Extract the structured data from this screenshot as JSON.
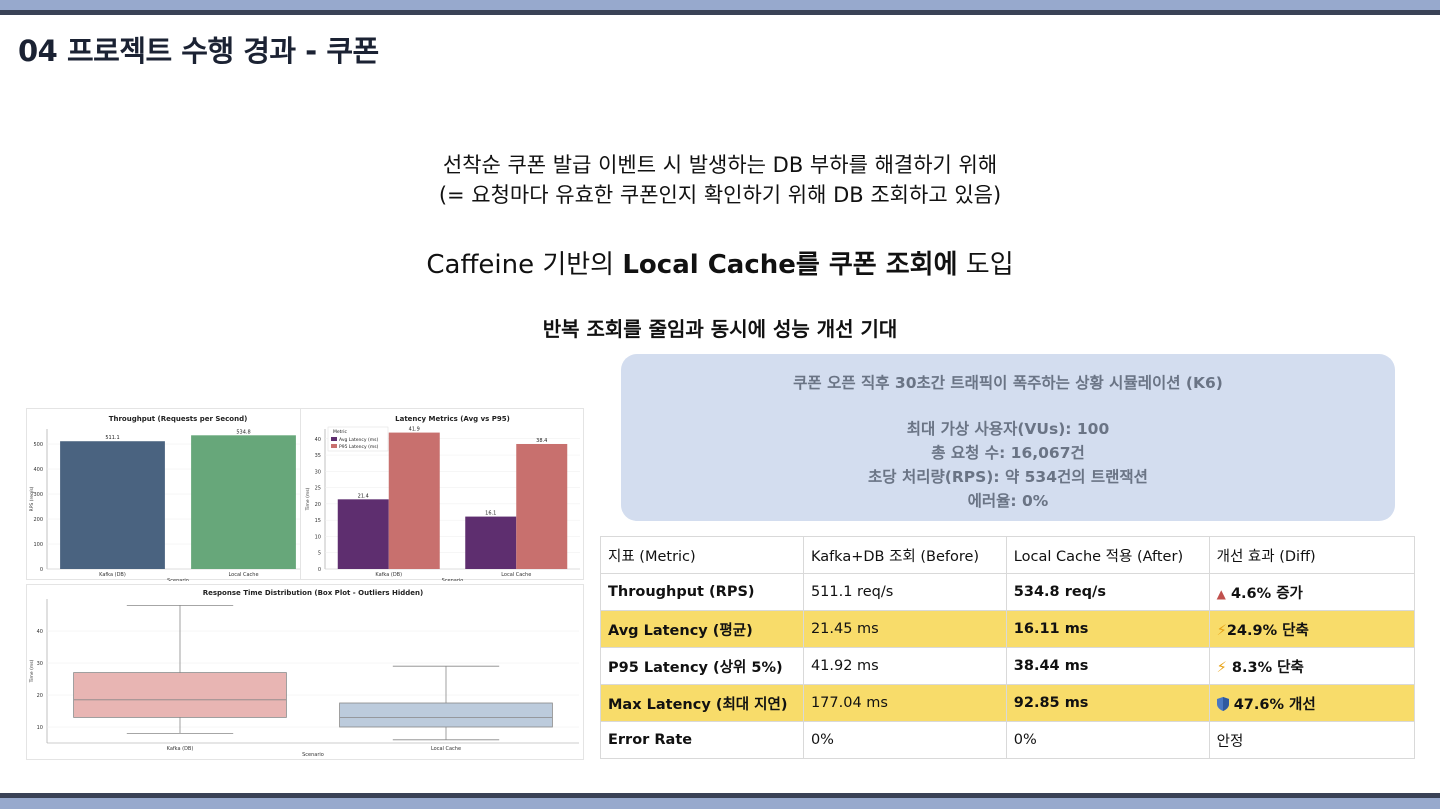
{
  "slide": {
    "title": "04 프로젝트 수행 경과 - 쿠폰",
    "intro_line1": "선착순 쿠폰 발급 이벤트 시 발생하는 DB 부하를 해결하기 위해",
    "intro_line2": "(= 요청마다 유효한 쿠폰인지 확인하기 위해 DB 조회하고 있음)",
    "headline_part1": "Caffeine 기반의 ",
    "headline_bold": "Local Cache를 쿠폰 조회에",
    "headline_part2": " 도입",
    "subhead": "반복 조회를 줄임과 동시에 성능 개선 기대",
    "colors": {
      "accent_band": "#97a9cd",
      "dark_line": "#3a4256",
      "sim_box": "#d3ddef",
      "highlight_row": "#f8dc6a"
    }
  },
  "simulation": {
    "title": "쿠폰 오픈 직후 30초간 트래픽이 폭주하는 상황 시뮬레이션 (K6)",
    "lines": [
      "최대 가상 사용자(VUs): 100",
      "총 요청 수: 16,067건",
      "초당 처리량(RPS): 약 534건의 트랜잭션",
      "에러율: 0%"
    ]
  },
  "table": {
    "headers": [
      "지표 (Metric)",
      "Kafka+DB 조회 (Before)",
      "Local Cache 적용 (After)",
      "개선 효과 (Diff)"
    ],
    "rows": [
      {
        "metric": "Throughput (RPS)",
        "before": "511.1 req/s",
        "after": "534.8 req/s",
        "diff_icon": "▲",
        "diff": "4.6% 증가",
        "highlight": false
      },
      {
        "metric": "Avg Latency (평균)",
        "before": "21.45 ms",
        "after": "16.11 ms",
        "diff_icon": "⚡",
        "diff": "24.9% 단축",
        "highlight": true
      },
      {
        "metric": "P95 Latency (상위 5%)",
        "before": "41.92 ms",
        "after": "38.44 ms",
        "diff_icon": "⚡",
        "diff": "8.3% 단축",
        "highlight": false
      },
      {
        "metric": "Max Latency (최대 지연)",
        "before": "177.04 ms",
        "after": "92.85 ms",
        "diff_icon": "shield-icon",
        "diff": "47.6% 개선",
        "highlight": true
      },
      {
        "metric": "Error Rate",
        "before": "0%",
        "after": "0%",
        "diff_icon": "",
        "diff": "안정",
        "highlight": false
      }
    ]
  },
  "chart_data": [
    {
      "type": "bar",
      "title": "Throughput (Requests per Second)",
      "xlabel": "Scenario",
      "ylabel": "RPS (req/s)",
      "categories": [
        "Kafka (DB)",
        "Local Cache"
      ],
      "values": [
        511.1,
        534.8
      ],
      "value_labels": [
        "511.1",
        "534.8"
      ],
      "colors": [
        "#4a6380",
        "#67a77a"
      ],
      "ylim": [
        0,
        560
      ],
      "yticks": [
        0,
        100,
        200,
        300,
        400,
        500
      ]
    },
    {
      "type": "bar",
      "title": "Latency Metrics (Avg vs P95)",
      "xlabel": "Scenario",
      "ylabel": "Time (ms)",
      "categories": [
        "Kafka (DB)",
        "Local Cache"
      ],
      "legend_title": "Metric",
      "series": [
        {
          "name": "Avg Latency (ms)",
          "values": [
            21.4,
            16.1
          ],
          "value_labels": [
            "21.4",
            "16.1"
          ],
          "color": "#5e2e6f"
        },
        {
          "name": "P95 Latency (ms)",
          "values": [
            41.9,
            38.4
          ],
          "value_labels": [
            "41.9",
            "38.4"
          ],
          "color": "#c8706e"
        }
      ],
      "ylim": [
        0,
        43
      ],
      "yticks": [
        0,
        5,
        10,
        15,
        20,
        25,
        30,
        35,
        40
      ]
    },
    {
      "type": "box",
      "title": "Response Time Distribution (Box Plot - Outliers Hidden)",
      "xlabel": "Scenario",
      "ylabel": "Time (ms)",
      "categories": [
        "Kafka (DB)",
        "Local Cache"
      ],
      "boxes": [
        {
          "whisker_low": 8,
          "q1": 13,
          "median": 18.5,
          "q3": 27,
          "whisker_high": 48,
          "color": "#e8b5b3"
        },
        {
          "whisker_low": 6,
          "q1": 10,
          "median": 13,
          "q3": 17.5,
          "whisker_high": 29,
          "color": "#bccbdc"
        }
      ],
      "ylim": [
        5,
        50
      ],
      "yticks": [
        10,
        20,
        30,
        40
      ]
    }
  ]
}
